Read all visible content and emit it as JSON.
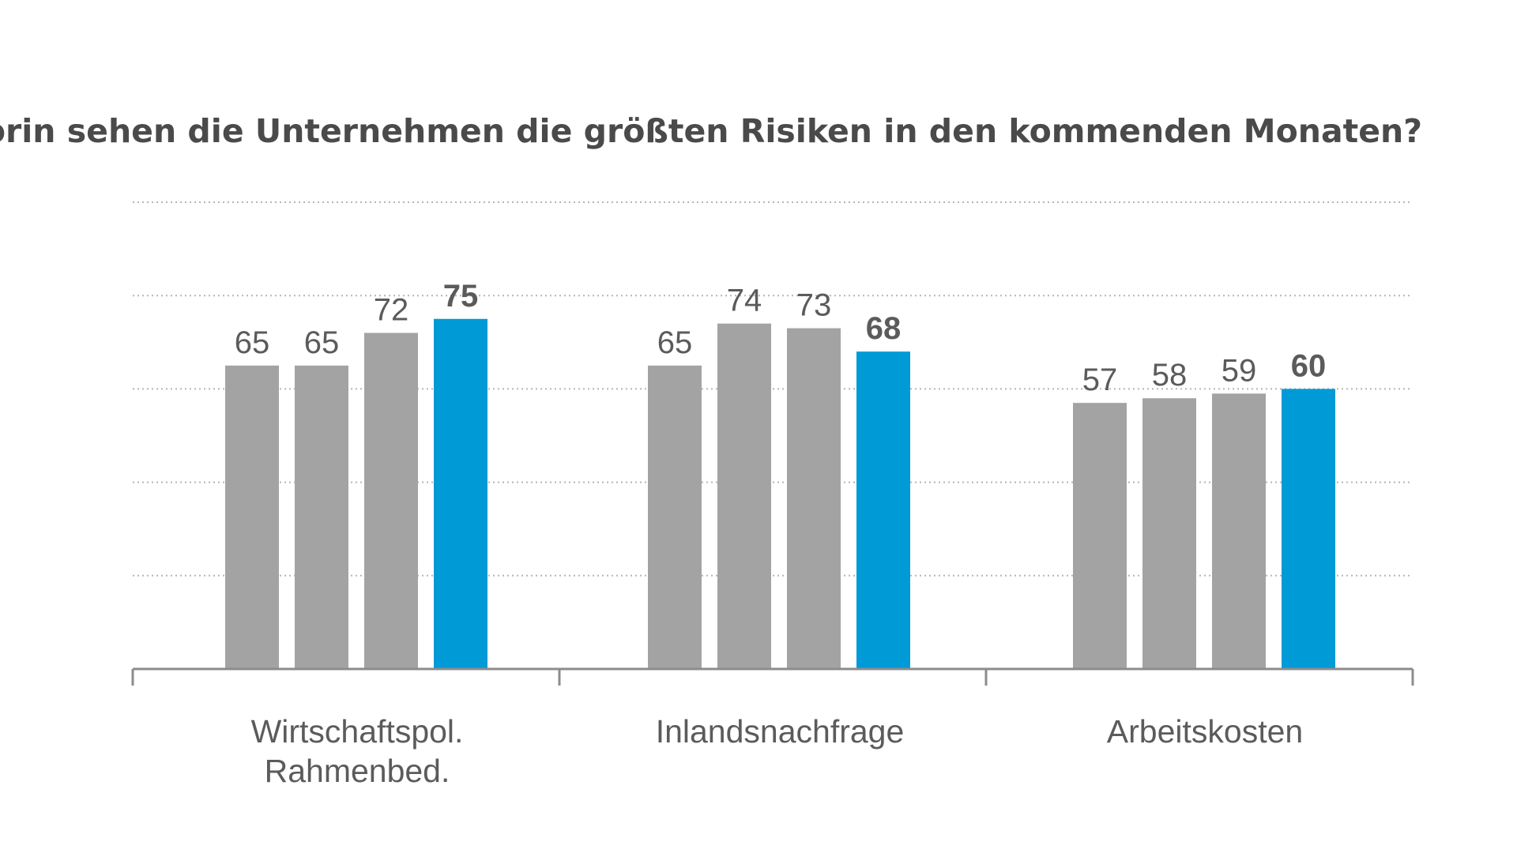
{
  "chart_data": {
    "type": "bar",
    "title": "Worin sehen die Unternehmen die größten Risiken in den kommenden Monaten?",
    "categories": [
      [
        "Wirtschaftspol.",
        "Rahmenbed."
      ],
      [
        "Inlandsnachfrage"
      ],
      [
        "Arbeitskosten"
      ]
    ],
    "series": [
      {
        "values": [
          65,
          65,
          57
        ]
      },
      {
        "values": [
          65,
          74,
          58
        ]
      },
      {
        "values": [
          72,
          73,
          59
        ]
      },
      {
        "values": [
          75,
          68,
          60
        ]
      }
    ],
    "ylim": [
      0,
      100
    ],
    "grid": true,
    "highlight_series_index": 3
  },
  "colors": {
    "bar_default": "#a3a3a3",
    "bar_highlight": "#009ad6",
    "grid": "#b5b5b5",
    "axis": "#8c8c8c",
    "text": "#5b5b5b",
    "title": "#4a4a4a"
  }
}
